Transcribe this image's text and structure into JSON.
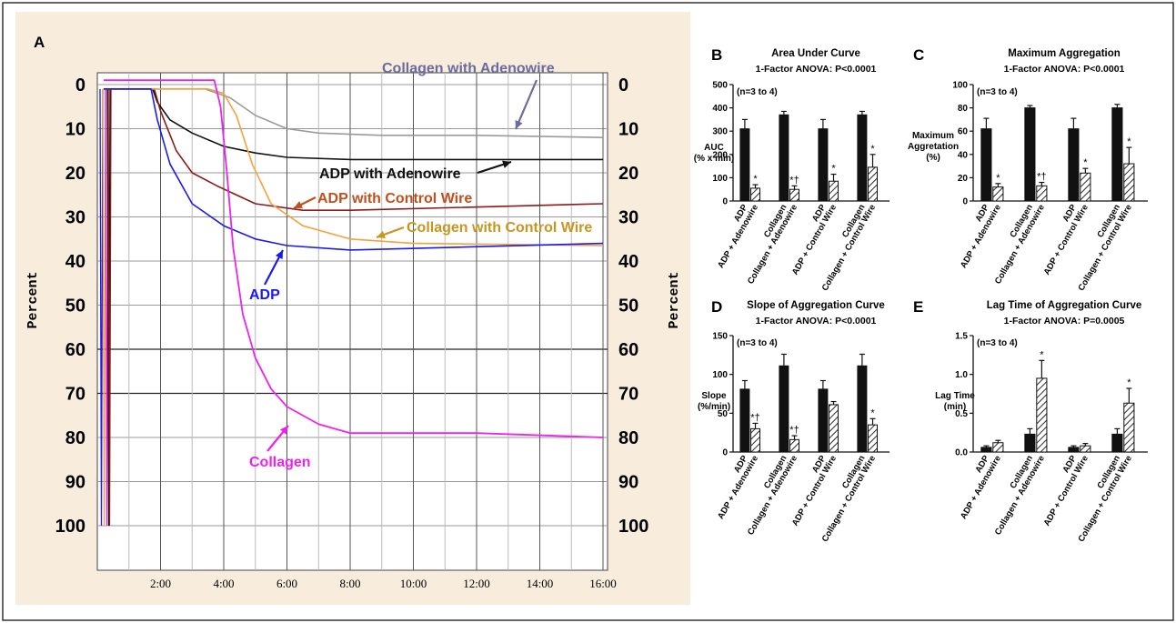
{
  "chart_data": [
    {
      "panel": "A",
      "type": "line",
      "ylabel": "Percent",
      "ylim": [
        0,
        100
      ],
      "y_inverted": true,
      "y_ticks": [
        "0",
        "10",
        "20",
        "30",
        "40",
        "50",
        "60",
        "70",
        "80",
        "90",
        "100"
      ],
      "x_ticks": [
        "2:00",
        "4:00",
        "6:00",
        "8:00",
        "10:00",
        "12:00",
        "14:00",
        "16:00"
      ],
      "grid": true,
      "series": [
        {
          "name": "Collagen with Adenowire",
          "color": "#9a9a9a",
          "x": [
            0.2,
            1.8,
            3.4,
            4.2,
            5.0,
            6.0,
            7.0,
            9.0,
            12.0,
            16.0
          ],
          "y": [
            1,
            1,
            1,
            3,
            7,
            10,
            11,
            11.5,
            11.5,
            12
          ]
        },
        {
          "name": "ADP with Adenowire",
          "color": "#111111",
          "x": [
            0.2,
            1.75,
            1.9,
            2.3,
            3.0,
            4.0,
            5.0,
            6.0,
            8.0,
            16.0
          ],
          "y": [
            1,
            1,
            4,
            8,
            11,
            14,
            15.5,
            16.5,
            17,
            17
          ]
        },
        {
          "name": "ADP with Control Wire",
          "color": "#8b1a1a",
          "x": [
            0.2,
            1.8,
            2.0,
            2.5,
            3.0,
            3.8,
            5.0,
            6.5,
            8.0,
            16.0
          ],
          "y": [
            1,
            1,
            6,
            15,
            20,
            23,
            27,
            28.5,
            28.5,
            27
          ]
        },
        {
          "name": "Collagen with Control Wire",
          "color": "#f5a23c",
          "x": [
            0.2,
            3.5,
            4.0,
            4.4,
            4.9,
            5.5,
            6.5,
            8.0,
            10.0,
            16.0
          ],
          "y": [
            1,
            1,
            2,
            7,
            18,
            27,
            32,
            35,
            36,
            36.5
          ]
        },
        {
          "name": "ADP",
          "color": "#1a1aee",
          "x": [
            0.2,
            1.7,
            1.9,
            2.3,
            3.0,
            4.0,
            5.0,
            6.0,
            8.0,
            16.0
          ],
          "y": [
            1,
            1,
            8,
            18,
            27,
            32,
            35,
            36.5,
            37.5,
            36
          ]
        },
        {
          "name": "Collagen",
          "color": "#ee22ee",
          "x": [
            0.2,
            3.7,
            3.9,
            4.1,
            4.3,
            4.6,
            5.0,
            5.5,
            6.0,
            7.0,
            8.0,
            12.0,
            16.0
          ],
          "y": [
            -1,
            -1,
            5,
            20,
            37,
            52,
            62,
            69,
            73,
            77,
            79,
            79,
            80
          ]
        }
      ],
      "annotations": [
        "Collagen with Adenowire",
        "ADP with Adenowire",
        "ADP with Control Wire",
        "Collagen with Control Wire",
        "ADP",
        "Collagen"
      ]
    },
    {
      "panel": "B",
      "type": "bar",
      "title": "Area Under Curve",
      "subtitle": "1-Factor ANOVA: P<0.0001",
      "note": "(n=3 to 4)",
      "ylabel": "AUC (% x min)",
      "ylim": [
        0,
        500
      ],
      "y_ticks": [
        "0",
        "100",
        "200",
        "300",
        "400",
        "500"
      ],
      "categories": [
        "ADP",
        "ADP + Adenowire",
        "Collagen",
        "Collagen + Adenowire",
        "ADP",
        "ADP + Control Wire",
        "Collagen",
        "Collagen + Control Wire"
      ],
      "values": [
        310,
        55,
        370,
        50,
        310,
        85,
        370,
        145
      ],
      "errors": [
        40,
        15,
        15,
        15,
        40,
        30,
        15,
        55
      ],
      "hatched": [
        false,
        true,
        false,
        true,
        false,
        true,
        false,
        true
      ],
      "marks": [
        "",
        "*",
        "",
        "*†",
        "",
        "*",
        "",
        "*"
      ]
    },
    {
      "panel": "C",
      "type": "bar",
      "title": "Maximum Aggregation",
      "subtitle": "1-Factor ANOVA: P<0.0001",
      "note": "(n=3 to 4)",
      "ylabel": "Maximum Aggretation (%)",
      "ylim": [
        0,
        100
      ],
      "y_ticks": [
        "0",
        "20",
        "40",
        "60",
        "80",
        "100"
      ],
      "categories": [
        "ADP",
        "ADP + Adenowire",
        "Collagen",
        "Collagen + Adenowire",
        "ADP",
        "ADP + Control Wire",
        "Collagen",
        "Collagen + Control Wire"
      ],
      "values": [
        62,
        12,
        80,
        13,
        62,
        24,
        80,
        32
      ],
      "errors": [
        9,
        3,
        2,
        3,
        9,
        4,
        3,
        14
      ],
      "hatched": [
        false,
        true,
        false,
        true,
        false,
        true,
        false,
        true
      ],
      "marks": [
        "",
        "*",
        "",
        "*†",
        "",
        "*",
        "",
        "*"
      ]
    },
    {
      "panel": "D",
      "type": "bar",
      "title": "Slope of Aggregation Curve",
      "subtitle": "1-Factor ANOVA: P<0.0001",
      "note": "(n=3 to 4)",
      "ylabel": "Slope (%/min)",
      "ylim": [
        0,
        150
      ],
      "y_ticks": [
        "0",
        "50",
        "100",
        "150"
      ],
      "categories": [
        "ADP",
        "ADP + Adenowire",
        "Collagen",
        "Collagen + Adenowire",
        "ADP",
        "ADP + Control Wire",
        "Collagen",
        "Collagen + Control Wire"
      ],
      "values": [
        81,
        30,
        111,
        16,
        81,
        61,
        111,
        35
      ],
      "errors": [
        11,
        7,
        15,
        5,
        11,
        4,
        15,
        8
      ],
      "hatched": [
        false,
        true,
        false,
        true,
        false,
        true,
        false,
        true
      ],
      "marks": [
        "",
        "*†",
        "",
        "*†",
        "",
        "",
        "",
        "*"
      ]
    },
    {
      "panel": "E",
      "type": "bar",
      "title": "Lag Time of Aggregation Curve",
      "subtitle": "1-Factor ANOVA: P=0.0005",
      "note": "(n=3 to 4)",
      "ylabel": "Lag Time (min)",
      "ylim": [
        0,
        1.5
      ],
      "y_ticks": [
        "0.0",
        "0.5",
        "1.0",
        "1.5"
      ],
      "categories": [
        "ADP",
        "ADP + Adenowire",
        "Collagen",
        "Collagen + Adenowire",
        "ADP",
        "ADP + Control Wire",
        "Collagen",
        "Collagen + Control Wire"
      ],
      "values": [
        0.06,
        0.12,
        0.23,
        0.95,
        0.06,
        0.08,
        0.23,
        0.63
      ],
      "errors": [
        0.02,
        0.03,
        0.07,
        0.23,
        0.02,
        0.03,
        0.07,
        0.19
      ],
      "hatched": [
        false,
        true,
        false,
        true,
        false,
        true,
        false,
        true
      ],
      "marks": [
        "",
        "",
        "",
        "*",
        "",
        "",
        "",
        "*"
      ]
    }
  ],
  "colors": {
    "panel_bg": "#f8ecdd",
    "plot_bg": "#ffffff",
    "grid": "#9a9a9a"
  }
}
